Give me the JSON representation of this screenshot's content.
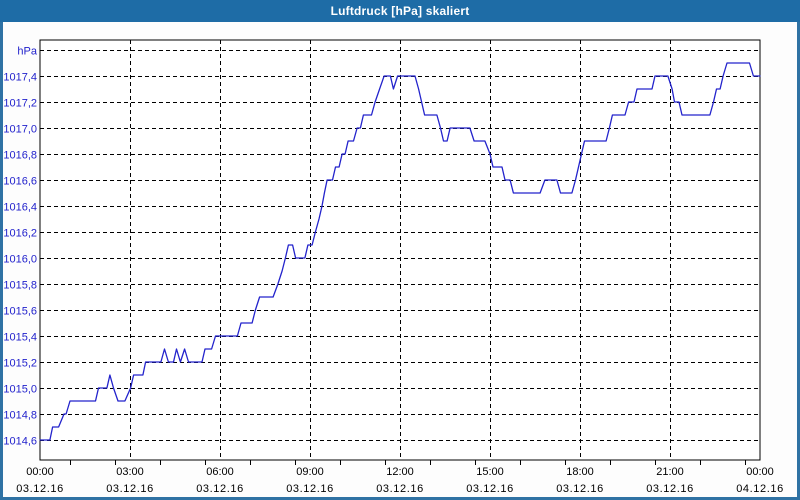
{
  "window": {
    "title": "Luftdruck [hPa] skaliert"
  },
  "colors": {
    "titlebar_bg": "#1e6ca6",
    "title_text": "#ffffff",
    "frame": "#2f72a4",
    "plot_background": "#ffffff",
    "plot_border": "#000000",
    "grid": "#000000",
    "line": "#2323cc",
    "y_label": "#2222cc",
    "x_label": "#000000"
  },
  "chart_data": {
    "type": "line",
    "title": "Luftdruck [hPa] skaliert",
    "unit_label": "hPa",
    "grid": "dashed",
    "legend": "none",
    "y_axis": {
      "min": 1014.45,
      "max": 1017.68,
      "gridline_values": [
        1014.6,
        1014.8,
        1015.0,
        1015.2,
        1015.4,
        1015.6,
        1015.8,
        1016.0,
        1016.2,
        1016.4,
        1016.6,
        1016.8,
        1017.0,
        1017.2,
        1017.4,
        1017.6
      ],
      "tick_labels": [
        "1014,6",
        "1014,8",
        "1015,0",
        "1015,2",
        "1015,4",
        "1015,6",
        "1015,8",
        "1016,0",
        "1016,2",
        "1016,4",
        "1016,6",
        "1016,8",
        "1017,0",
        "1017,2",
        "1017,4"
      ]
    },
    "x_axis": {
      "start_hour": 0,
      "end_hour": 24,
      "gridline_every_hours": 3,
      "minor_tick_hours": [
        1,
        2.5,
        4,
        5.5,
        7,
        8.5,
        10,
        11.5,
        13,
        14.5,
        16,
        17.5,
        19,
        20.5,
        22,
        23.5
      ],
      "tick_labels": [
        {
          "time": "00:00",
          "date": "03.12.16"
        },
        {
          "time": "03:00",
          "date": "03.12.16"
        },
        {
          "time": "06:00",
          "date": "03.12.16"
        },
        {
          "time": "09:00",
          "date": "03.12.16"
        },
        {
          "time": "12:00",
          "date": "03.12.16"
        },
        {
          "time": "15:00",
          "date": "03.12.16"
        },
        {
          "time": "18:00",
          "date": "03.12.16"
        },
        {
          "time": "21:00",
          "date": "03.12.16"
        },
        {
          "time": "00:00",
          "date": "04.12.16"
        }
      ]
    },
    "series": [
      {
        "name": "Luftdruck",
        "unit": "hPa",
        "points": [
          [
            0.0,
            1014.6
          ],
          [
            0.33,
            1014.6
          ],
          [
            0.42,
            1014.7
          ],
          [
            0.62,
            1014.7
          ],
          [
            0.8,
            1014.8
          ],
          [
            0.87,
            1014.8
          ],
          [
            1.0,
            1014.9
          ],
          [
            1.85,
            1014.9
          ],
          [
            1.95,
            1015.0
          ],
          [
            2.23,
            1015.0
          ],
          [
            2.33,
            1015.1
          ],
          [
            2.45,
            1015.0
          ],
          [
            2.6,
            1014.9
          ],
          [
            2.83,
            1014.9
          ],
          [
            3.02,
            1015.0
          ],
          [
            3.12,
            1015.1
          ],
          [
            3.43,
            1015.1
          ],
          [
            3.52,
            1015.2
          ],
          [
            4.03,
            1015.2
          ],
          [
            4.15,
            1015.3
          ],
          [
            4.28,
            1015.2
          ],
          [
            4.45,
            1015.2
          ],
          [
            4.55,
            1015.3
          ],
          [
            4.68,
            1015.2
          ],
          [
            4.82,
            1015.3
          ],
          [
            4.95,
            1015.2
          ],
          [
            5.4,
            1015.2
          ],
          [
            5.5,
            1015.3
          ],
          [
            5.72,
            1015.3
          ],
          [
            5.85,
            1015.4
          ],
          [
            6.58,
            1015.4
          ],
          [
            6.7,
            1015.5
          ],
          [
            7.07,
            1015.5
          ],
          [
            7.18,
            1015.6
          ],
          [
            7.32,
            1015.7
          ],
          [
            7.77,
            1015.7
          ],
          [
            7.93,
            1015.8
          ],
          [
            8.07,
            1015.9
          ],
          [
            8.18,
            1016.0
          ],
          [
            8.28,
            1016.1
          ],
          [
            8.42,
            1016.1
          ],
          [
            8.52,
            1016.0
          ],
          [
            8.83,
            1016.0
          ],
          [
            8.93,
            1016.1
          ],
          [
            9.07,
            1016.1
          ],
          [
            9.18,
            1016.2
          ],
          [
            9.3,
            1016.3
          ],
          [
            9.4,
            1016.4
          ],
          [
            9.48,
            1016.5
          ],
          [
            9.57,
            1016.6
          ],
          [
            9.75,
            1016.6
          ],
          [
            9.85,
            1016.7
          ],
          [
            9.97,
            1016.7
          ],
          [
            10.07,
            1016.8
          ],
          [
            10.17,
            1016.8
          ],
          [
            10.27,
            1016.9
          ],
          [
            10.45,
            1016.9
          ],
          [
            10.57,
            1017.0
          ],
          [
            10.68,
            1017.0
          ],
          [
            10.78,
            1017.1
          ],
          [
            11.05,
            1017.1
          ],
          [
            11.17,
            1017.2
          ],
          [
            11.32,
            1017.3
          ],
          [
            11.47,
            1017.4
          ],
          [
            11.68,
            1017.4
          ],
          [
            11.78,
            1017.3
          ],
          [
            11.92,
            1017.4
          ],
          [
            12.5,
            1017.4
          ],
          [
            12.62,
            1017.3
          ],
          [
            12.72,
            1017.2
          ],
          [
            12.82,
            1017.1
          ],
          [
            13.23,
            1017.1
          ],
          [
            13.35,
            1017.0
          ],
          [
            13.45,
            1016.9
          ],
          [
            13.57,
            1016.9
          ],
          [
            13.67,
            1017.0
          ],
          [
            14.33,
            1017.0
          ],
          [
            14.47,
            1016.9
          ],
          [
            14.83,
            1016.9
          ],
          [
            15.0,
            1016.8
          ],
          [
            15.1,
            1016.7
          ],
          [
            15.4,
            1016.7
          ],
          [
            15.5,
            1016.6
          ],
          [
            15.67,
            1016.6
          ],
          [
            15.78,
            1016.5
          ],
          [
            16.67,
            1016.5
          ],
          [
            16.83,
            1016.6
          ],
          [
            17.23,
            1016.6
          ],
          [
            17.35,
            1016.5
          ],
          [
            17.73,
            1016.5
          ],
          [
            17.85,
            1016.6
          ],
          [
            17.95,
            1016.7
          ],
          [
            18.05,
            1016.8
          ],
          [
            18.15,
            1016.9
          ],
          [
            18.87,
            1016.9
          ],
          [
            18.98,
            1017.0
          ],
          [
            19.08,
            1017.1
          ],
          [
            19.5,
            1017.1
          ],
          [
            19.62,
            1017.2
          ],
          [
            19.8,
            1017.2
          ],
          [
            19.9,
            1017.3
          ],
          [
            20.4,
            1017.3
          ],
          [
            20.5,
            1017.4
          ],
          [
            20.93,
            1017.4
          ],
          [
            21.07,
            1017.3
          ],
          [
            21.15,
            1017.2
          ],
          [
            21.3,
            1017.2
          ],
          [
            21.4,
            1017.1
          ],
          [
            22.33,
            1017.1
          ],
          [
            22.45,
            1017.2
          ],
          [
            22.55,
            1017.3
          ],
          [
            22.67,
            1017.3
          ],
          [
            22.77,
            1017.4
          ],
          [
            22.9,
            1017.5
          ],
          [
            23.65,
            1017.5
          ],
          [
            23.78,
            1017.4
          ],
          [
            24.0,
            1017.4
          ]
        ]
      }
    ]
  }
}
